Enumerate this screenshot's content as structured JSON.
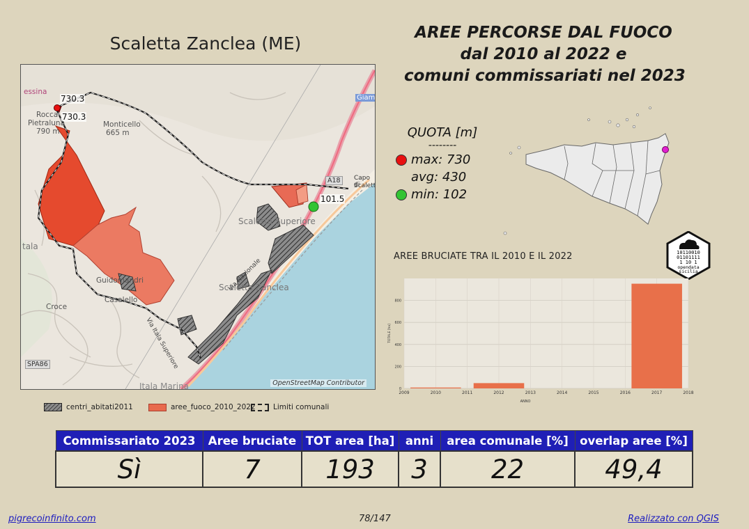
{
  "title": "Scaletta Zanclea (ME)",
  "headline": [
    "AREE PERCORSE DAL FUOCO",
    "dal 2010 al 2022 e",
    "comuni commissariati nel 2023"
  ],
  "map": {
    "attribution": "OpenStreetMap Contributor",
    "elevation_labels": {
      "top1": "730.3",
      "top2": "730.3",
      "low": "101.5"
    },
    "place_labels": {
      "messina": "essina",
      "rocca": "Rocca",
      "pietraluna": "Pietraluna",
      "pietraluna_alt": "790 m",
      "monticello": "Monticello",
      "monticello_alt": "665 m",
      "giampilieri": "Giamp",
      "a18": "A18",
      "capo1": "Capo di",
      "capo2": "Scaletta",
      "scaletta_sup": "Scaletta Superiore",
      "scaletta_z": "Scaletta Zanclea",
      "guidomandri": "Guidomandri",
      "casalello": "Casalello",
      "croce": "Croce",
      "spa86": "SPA86",
      "itala_marina": "Itala Marina",
      "itala": "tala",
      "via_nazionale": "Via Nazionale",
      "via_superiore": "Via Itala Superiore"
    }
  },
  "legend": {
    "centri": "centri_abitati2011",
    "aree": "aree_fuoco_2010_2022",
    "limiti": "Limiti comunali"
  },
  "quota": {
    "title": "QUOTA [m]",
    "separator": "--------",
    "max": "max: 730",
    "avg": "avg: 430",
    "min": "min: 102",
    "colors": {
      "max": "#e81010",
      "min": "#33c433"
    }
  },
  "locator": {
    "highlight_color": "#e020d0",
    "island_fill": "#ebebeb"
  },
  "logo": {
    "line1": "10110010",
    "line2": "01101111",
    "line3": "1  10 1",
    "line4": "opendata",
    "line5": "sicilia"
  },
  "chart_data": {
    "type": "bar",
    "title": "AREE BRUCIATE TRA IL 2010 E IL 2022",
    "xlabel": "ANNO",
    "ylabel": "TOTALE [ha]",
    "categories": [
      "2010",
      "2012",
      "2017"
    ],
    "values": [
      8,
      48,
      952
    ],
    "ylim": [
      0,
      1000
    ],
    "yticks": [
      0,
      200,
      400,
      600,
      800
    ],
    "xticks": [
      2009,
      2010,
      2011,
      2012,
      2013,
      2014,
      2015,
      2016,
      2017,
      2018
    ],
    "bar_color": "#e8704a",
    "grid": true
  },
  "table": {
    "headers": [
      "Commissariato 2023",
      "Aree bruciate",
      "TOT area [ha]",
      "anni",
      "area comunale [%]",
      "overlap aree [%]"
    ],
    "values": [
      "Sì",
      "7",
      "193",
      "3",
      "22",
      "49,4"
    ]
  },
  "footer": {
    "left": "pigrecoinfinito.com",
    "center": "78/147",
    "right": "Realizzato con QGIS"
  }
}
